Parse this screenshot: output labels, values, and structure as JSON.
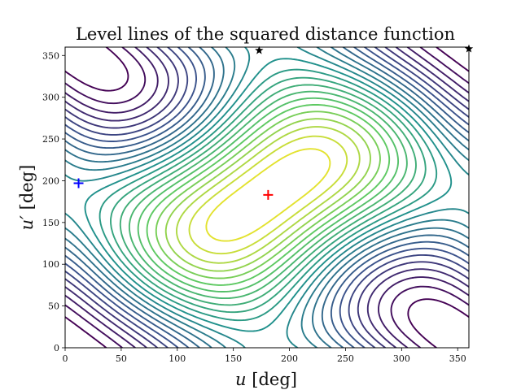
{
  "chart_data": {
    "type": "contour",
    "title": "Level lines of the squared distance function",
    "xlabel_var": "u",
    "xlabel_unit": "[deg]",
    "ylabel_var": "u′",
    "ylabel_unit": "[deg]",
    "xlim": [
      0,
      360
    ],
    "ylim": [
      0,
      360
    ],
    "xticks": [
      0,
      50,
      100,
      150,
      200,
      250,
      300,
      350
    ],
    "yticks": [
      0,
      50,
      100,
      150,
      200,
      250,
      300,
      350
    ],
    "colormap": [
      "#440154",
      "#3b528b",
      "#21918c",
      "#5ec962",
      "#fde725"
    ],
    "levels": 24,
    "markers": [
      {
        "name": "blue-cross",
        "shape": "plus",
        "color": "#0000ff",
        "x": 12,
        "y": 197
      },
      {
        "name": "red-cross",
        "shape": "plus",
        "color": "#ff0000",
        "x": 181,
        "y": 183
      },
      {
        "name": "star-top",
        "shape": "star",
        "color": "#000000",
        "x": 173,
        "y": 356
      },
      {
        "name": "star-corner",
        "shape": "star",
        "color": "#000000",
        "x": 360,
        "y": 358
      }
    ]
  }
}
